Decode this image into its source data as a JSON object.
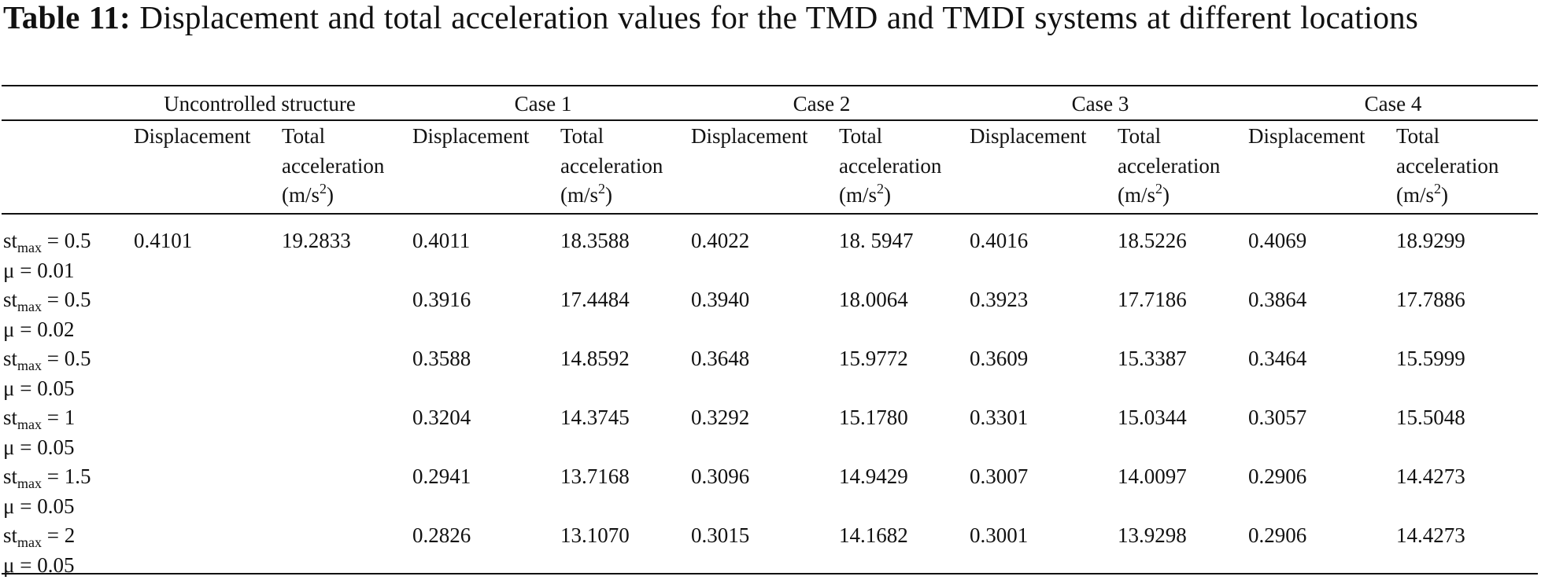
{
  "caption": {
    "label": "Table 11:",
    "text": "Displacement and total acceleration values for the TMD and TMDI systems at different locations"
  },
  "groups": [
    "Uncontrolled structure",
    "Case 1",
    "Case 2",
    "Case 3",
    "Case 4"
  ],
  "subheaders": {
    "displacement": "Displacement",
    "acc_line1": "Total",
    "acc_line2": "acceleration",
    "acc_unit_base": "(m/s",
    "acc_unit_exp": "2",
    "acc_unit_close": ")"
  },
  "rows": [
    {
      "st_sym": "st",
      "st_sub": "max",
      "st_val": " = 0.5",
      "mu": "μ = 0.01",
      "values": [
        "0.4101",
        "19.2833",
        "0.4011",
        "18.3588",
        "0.4022",
        "18. 5947",
        "0.4016",
        "18.5226",
        "0.4069",
        "18.9299"
      ]
    },
    {
      "st_sym": "st",
      "st_sub": "max",
      "st_val": " = 0.5",
      "mu": "μ = 0.02",
      "values": [
        "",
        "",
        "0.3916",
        "17.4484",
        "0.3940",
        "18.0064",
        "0.3923",
        "17.7186",
        "0.3864",
        "17.7886"
      ]
    },
    {
      "st_sym": "st",
      "st_sub": "max",
      "st_val": " = 0.5",
      "mu": "μ = 0.05",
      "values": [
        "",
        "",
        "0.3588",
        "14.8592",
        "0.3648",
        "15.9772",
        "0.3609",
        "15.3387",
        "0.3464",
        "15.5999"
      ]
    },
    {
      "st_sym": "st",
      "st_sub": "max",
      "st_val": " = 1",
      "mu": "μ = 0.05",
      "values": [
        "",
        "",
        "0.3204",
        "14.3745",
        "0.3292",
        "15.1780",
        "0.3301",
        "15.0344",
        "0.3057",
        "15.5048"
      ]
    },
    {
      "st_sym": "st",
      "st_sub": "max",
      "st_val": " = 1.5",
      "mu": "μ = 0.05",
      "values": [
        "",
        "",
        "0.2941",
        "13.7168",
        "0.3096",
        "14.9429",
        "0.3007",
        "14.0097",
        "0.2906",
        "14.4273"
      ]
    },
    {
      "st_sym": "st",
      "st_sub": "max",
      "st_val": " = 2",
      "mu": "μ = 0.05",
      "values": [
        "",
        "",
        "0.2826",
        "13.1070",
        "0.3015",
        "14.1682",
        "0.3001",
        "13.9298",
        "0.2906",
        "14.4273"
      ]
    }
  ]
}
